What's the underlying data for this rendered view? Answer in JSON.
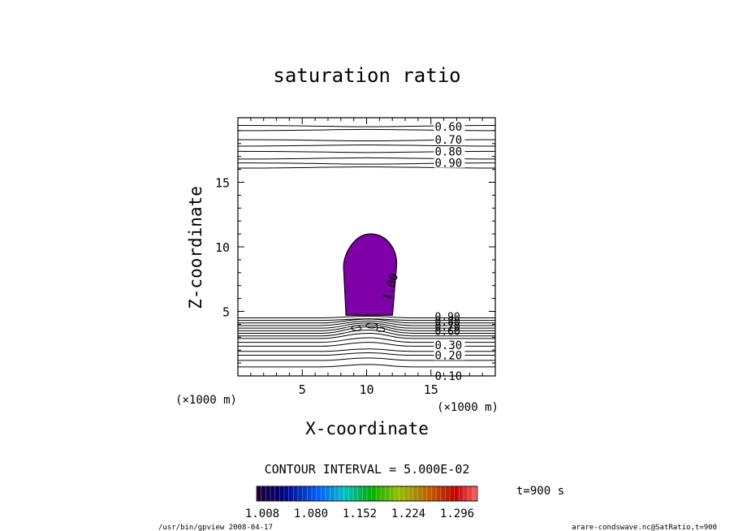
{
  "chart_data": {
    "type": "contour",
    "title": "saturation ratio",
    "xlabel": "X-coordinate",
    "ylabel": "Z-coordinate",
    "x_unit": "(×1000 m)",
    "y_unit": "(×1000 m)",
    "xlim": [
      0,
      20
    ],
    "ylim": [
      0,
      20
    ],
    "x_ticks": [
      5,
      10,
      15
    ],
    "y_ticks": [
      5,
      10,
      15
    ],
    "contour_interval_label": "CONTOUR INTERVAL = 5.000E-02",
    "contour_labels": [
      {
        "label": "0.60",
        "z": 19.3
      },
      {
        "label": "0.70",
        "z": 18.3
      },
      {
        "label": "0.80",
        "z": 17.4
      },
      {
        "label": "0.90",
        "z": 16.5
      },
      {
        "label": "1.00",
        "z": 6.0
      },
      {
        "label": "0.30",
        "z": 2.4
      },
      {
        "label": "0.20",
        "z": 1.6
      },
      {
        "label": "0.10",
        "z": 0.0
      }
    ],
    "upper_contour_levels_z": [
      19.4,
      19.0,
      18.3,
      17.8,
      17.4,
      16.8,
      16.5,
      16.1
    ],
    "lower_contour_levels_z": [
      4.5,
      4.3,
      4.1,
      3.9,
      3.7,
      3.5,
      3.3,
      3.1,
      2.9,
      2.6,
      2.3,
      1.9,
      1.6,
      1.2,
      0.7
    ],
    "shaded_region": {
      "description": "saturation ratio > 1.008",
      "x_range": [
        8.4,
        12.2
      ],
      "z_range": [
        4.7,
        11.0
      ],
      "color": "#7f00a8"
    },
    "colorbar": {
      "tick_labels": [
        "1.008",
        "1.080",
        "1.152",
        "1.224",
        "1.296"
      ],
      "colors": [
        "#1a0030",
        "#000080",
        "#0060ff",
        "#00c0c0",
        "#00b000",
        "#90c000",
        "#c06000",
        "#c00000",
        "#ff6060"
      ]
    },
    "time_label": "t=900 s",
    "footer_left": "/usr/bin/gpview   2008-04-17",
    "footer_right": "arare-condswave.nc@SatRatio,t=900"
  }
}
